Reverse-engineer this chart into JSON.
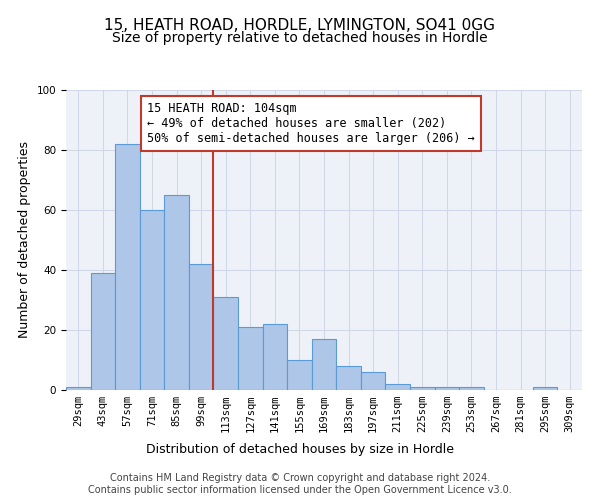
{
  "title1": "15, HEATH ROAD, HORDLE, LYMINGTON, SO41 0GG",
  "title2": "Size of property relative to detached houses in Hordle",
  "xlabel": "Distribution of detached houses by size in Hordle",
  "ylabel": "Number of detached properties",
  "bin_labels": [
    "29sqm",
    "43sqm",
    "57sqm",
    "71sqm",
    "85sqm",
    "99sqm",
    "113sqm",
    "127sqm",
    "141sqm",
    "155sqm",
    "169sqm",
    "183sqm",
    "197sqm",
    "211sqm",
    "225sqm",
    "239sqm",
    "253sqm",
    "267sqm",
    "281sqm",
    "295sqm",
    "309sqm"
  ],
  "bar_values": [
    1,
    39,
    82,
    60,
    65,
    42,
    31,
    21,
    22,
    10,
    17,
    8,
    6,
    2,
    1,
    1,
    1,
    0,
    0,
    1,
    0
  ],
  "bar_color": "#aec6e8",
  "bar_edge_color": "#5b9bd5",
  "vline_x": 5.5,
  "vline_color": "#c0392b",
  "annotation_text": "15 HEATH ROAD: 104sqm\n← 49% of detached houses are smaller (202)\n50% of semi-detached houses are larger (206) →",
  "annotation_box_color": "#ffffff",
  "annotation_box_edge": "#c0392b",
  "ylim": [
    0,
    100
  ],
  "grid_color": "#d0d8e8",
  "background_color": "#eef2f8",
  "footer_text": "Contains HM Land Registry data © Crown copyright and database right 2024.\nContains public sector information licensed under the Open Government Licence v3.0.",
  "title1_fontsize": 11,
  "title2_fontsize": 10,
  "xlabel_fontsize": 9,
  "ylabel_fontsize": 9,
  "tick_fontsize": 7.5,
  "annotation_fontsize": 8.5,
  "footer_fontsize": 7
}
